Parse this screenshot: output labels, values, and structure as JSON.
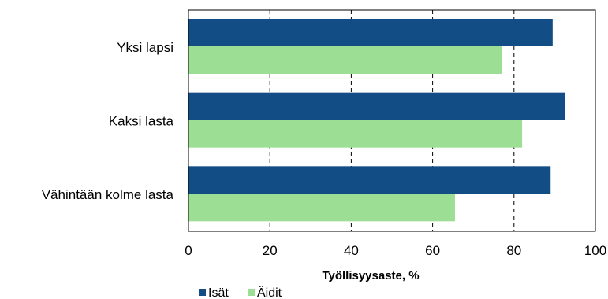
{
  "chart_data": {
    "type": "bar",
    "orientation": "horizontal",
    "categories": [
      "Yksi lapsi",
      "Kaksi lasta",
      "Vähintään kolme lasta"
    ],
    "series": [
      {
        "name": "Isät",
        "values": [
          89.5,
          92.5,
          89.0
        ],
        "color": "#124D86"
      },
      {
        "name": "Äidit",
        "values": [
          77.0,
          82.0,
          65.5
        ],
        "color": "#9CDF94"
      }
    ],
    "xlabel": "Työllisyysaste, %",
    "xlim": [
      0,
      100
    ],
    "xticks": [
      0,
      20,
      40,
      60,
      80,
      100
    ],
    "grid": "vertical dashed",
    "legend_position": "bottom-left"
  }
}
